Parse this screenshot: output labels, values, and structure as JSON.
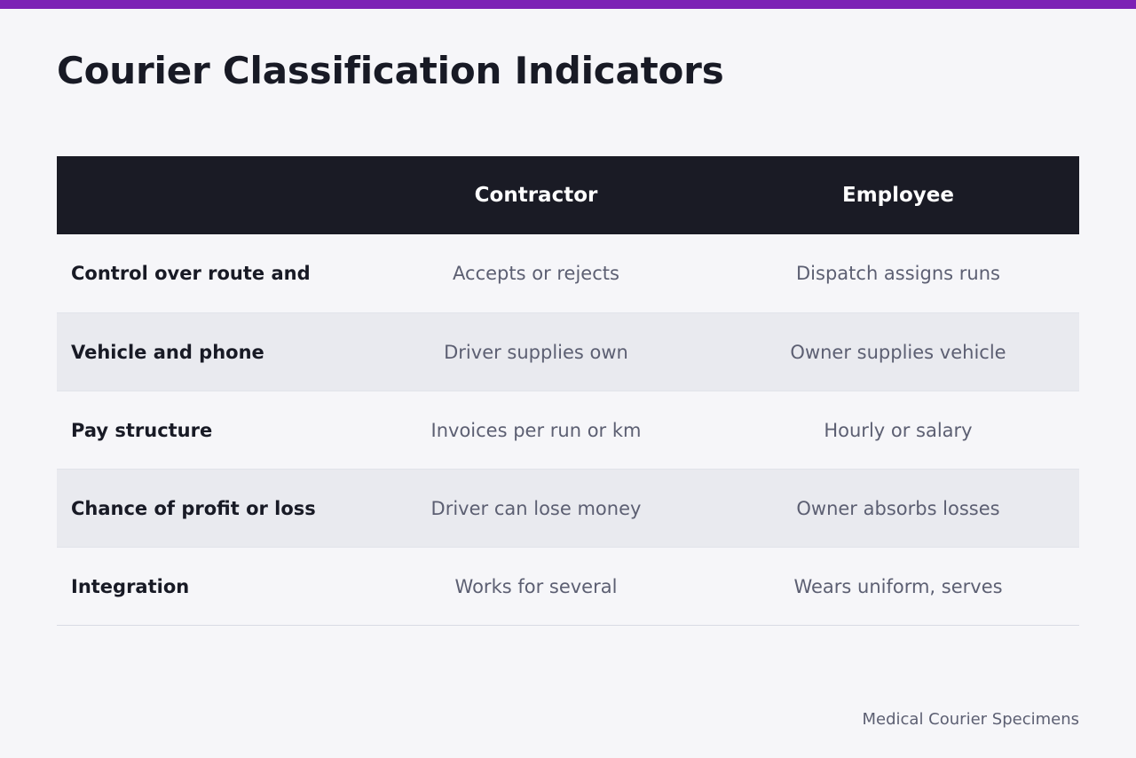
{
  "page": {
    "title": "Courier Classification Indicators",
    "footer": "Medical Courier Specimens"
  },
  "colors": {
    "accent_bar": "#7c22b5",
    "header_bg": "#1a1b25",
    "background": "#f6f6f9",
    "row_alt": "#e9eaef",
    "label_text": "#181a25",
    "value_text": "#5c5f72"
  },
  "table": {
    "columns": [
      "",
      "Contractor",
      "Employee"
    ],
    "rows": [
      {
        "label": "Control over route and",
        "contractor": "Accepts or rejects",
        "employee": "Dispatch assigns runs"
      },
      {
        "label": "Vehicle and phone",
        "contractor": "Driver supplies own",
        "employee": "Owner supplies vehicle"
      },
      {
        "label": "Pay structure",
        "contractor": "Invoices per run or km",
        "employee": "Hourly or salary"
      },
      {
        "label": "Chance of profit or loss",
        "contractor": "Driver can lose money",
        "employee": "Owner absorbs losses"
      },
      {
        "label": "Integration",
        "contractor": "Works for several",
        "employee": "Wears uniform, serves"
      }
    ]
  }
}
